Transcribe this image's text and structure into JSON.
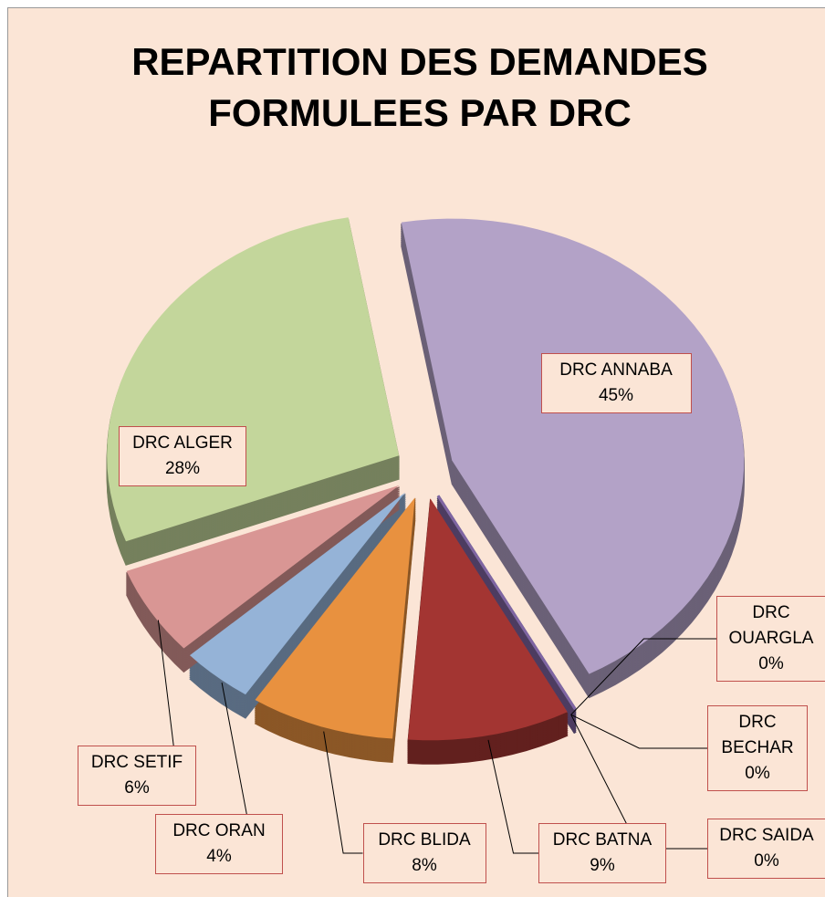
{
  "chart_data": {
    "type": "pie",
    "title": "REPARTITION DES DEMANDES FORMULEES PAR DRC",
    "categories": [
      "DRC ANNABA",
      "DRC OUARGLA",
      "DRC BECHAR",
      "DRC SAIDA",
      "DRC BATNA",
      "DRC BLIDA",
      "DRC ORAN",
      "DRC SETIF",
      "DRC ALGER"
    ],
    "values": [
      45,
      0,
      0,
      0,
      9,
      8,
      4,
      6,
      28
    ],
    "value_labels": [
      "45%",
      "0%",
      "0%",
      "0%",
      "9%",
      "8%",
      "4%",
      "6%",
      "28%"
    ],
    "colors": [
      "#b3a2c7",
      "#77933c",
      "#4f81bd",
      "#8064a2",
      "#a33532",
      "#e8913f",
      "#95b3d7",
      "#d99694",
      "#c3d69b"
    ]
  }
}
